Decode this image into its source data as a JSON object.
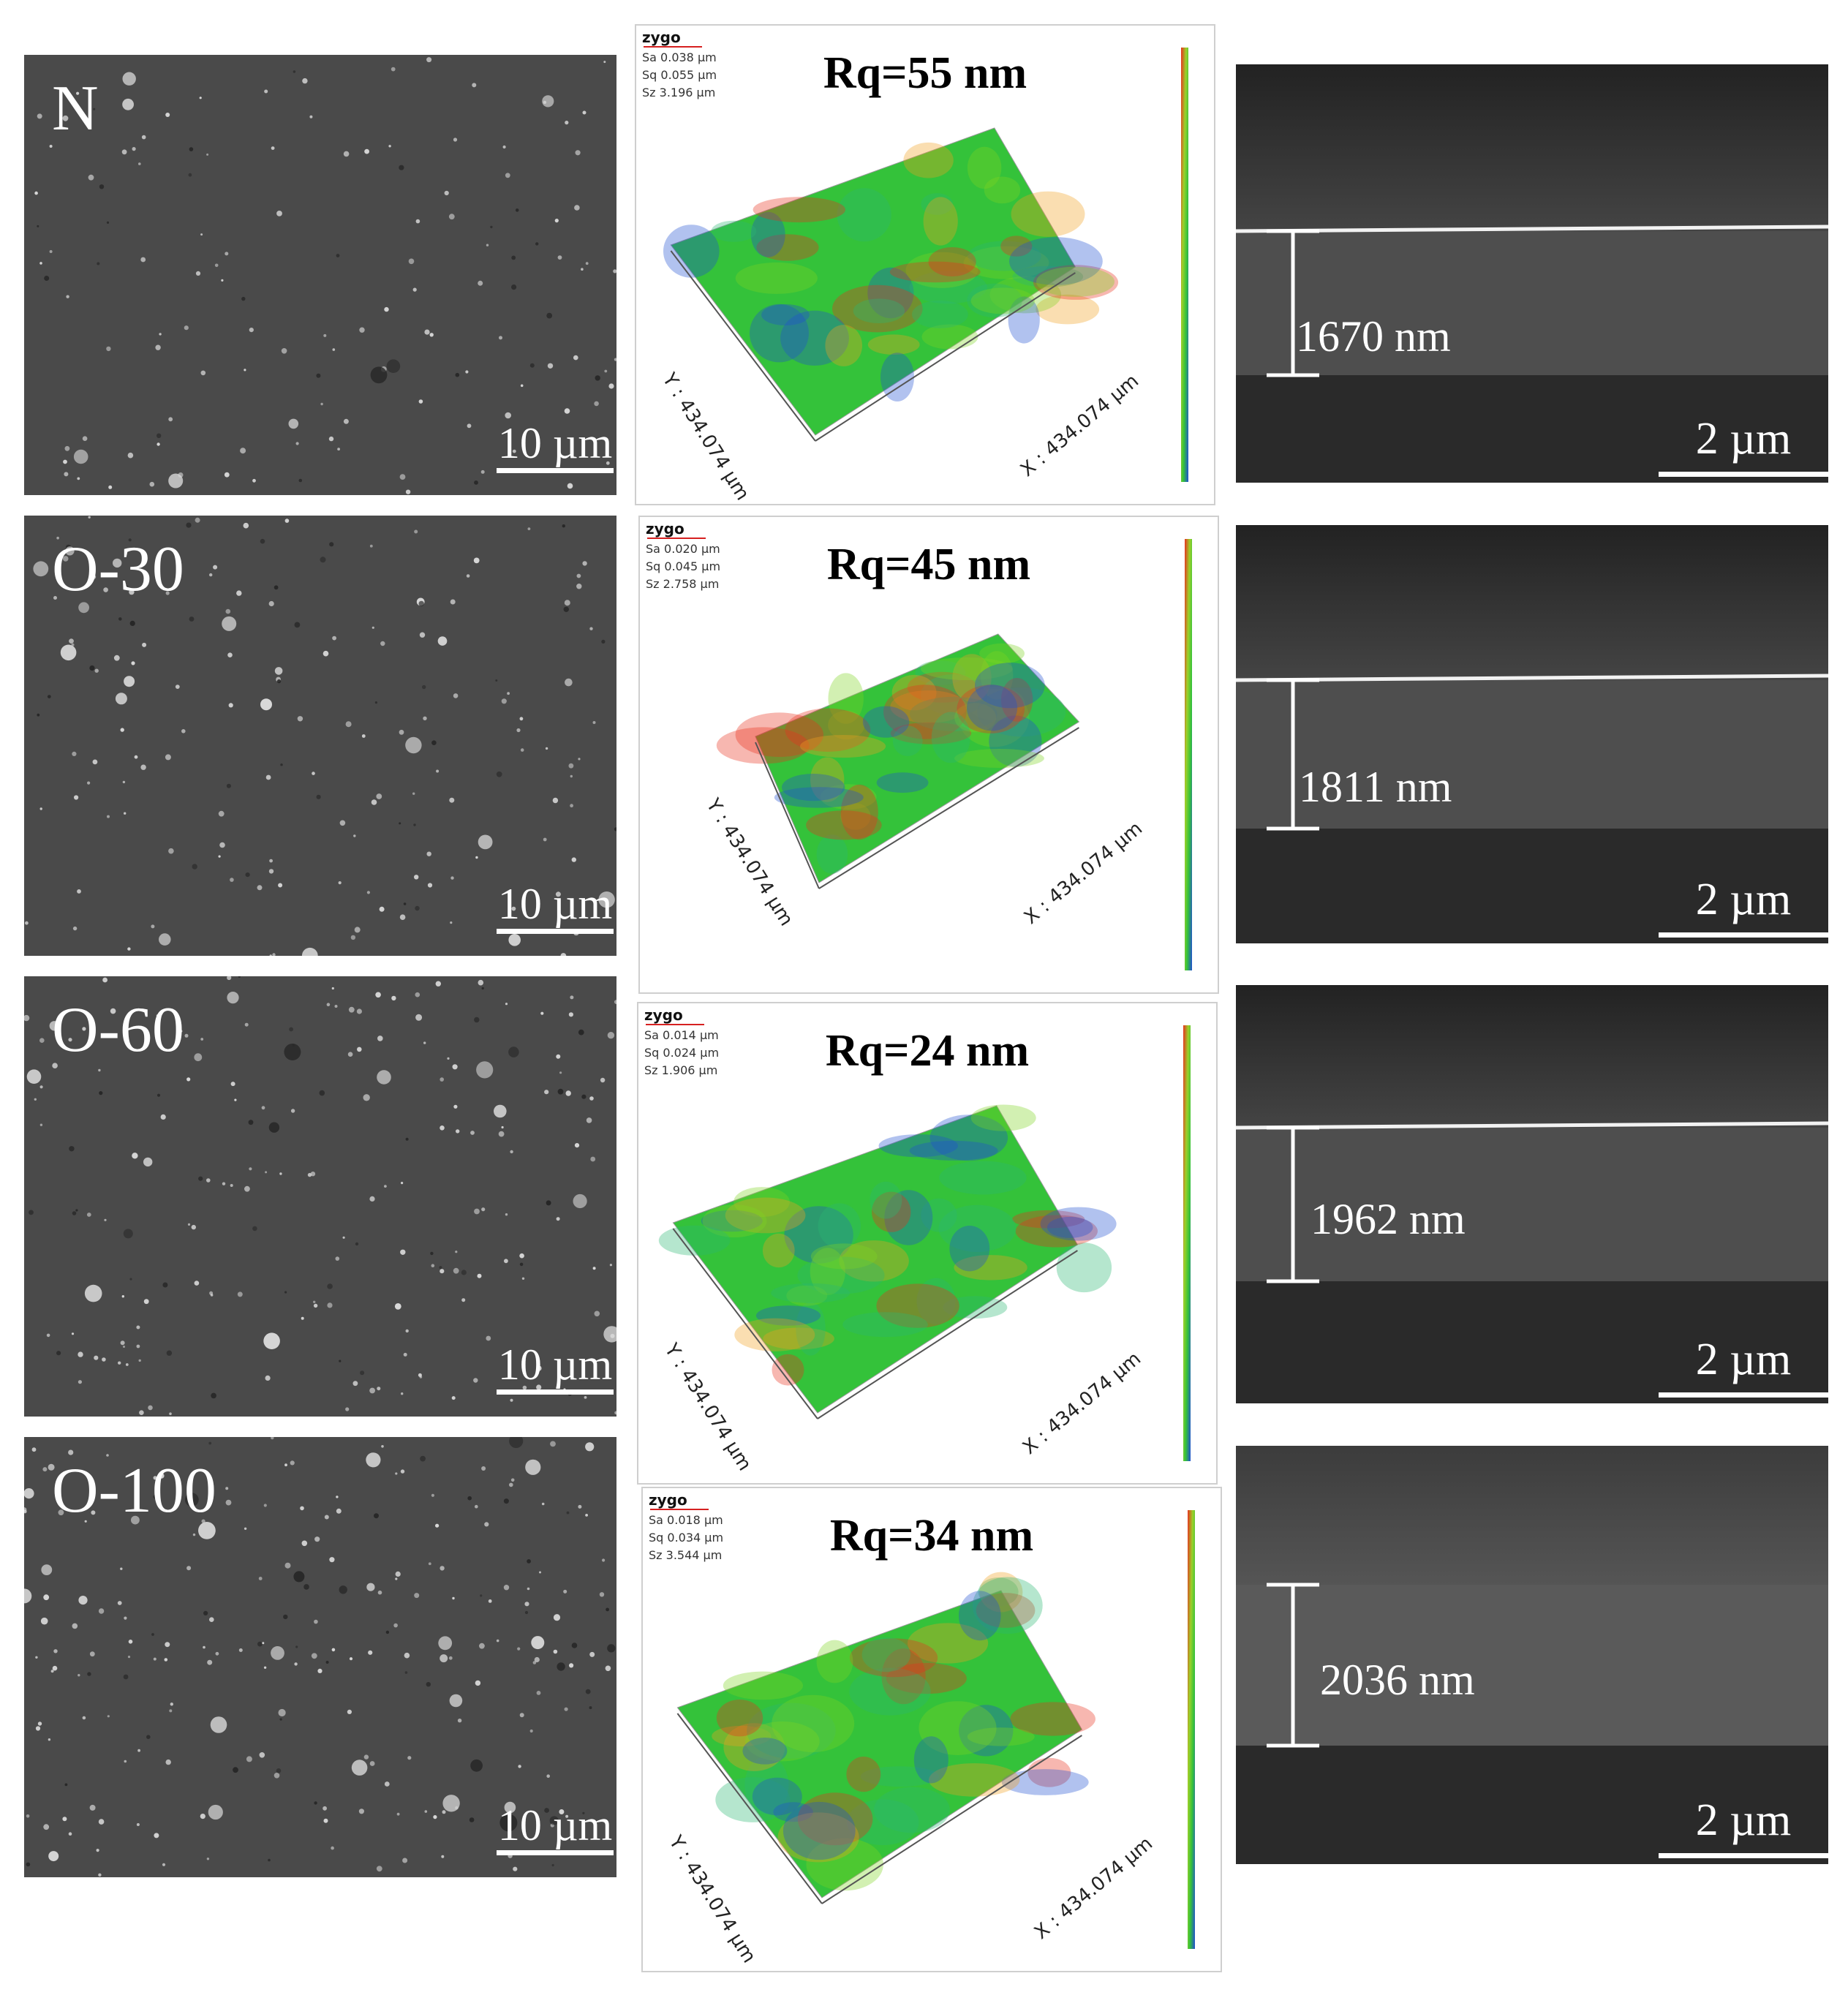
{
  "rows": [
    {
      "sample": "N",
      "sem_scale": "10 µm",
      "rq": "Rq=55 nm",
      "zygo": {
        "logo": "zygo",
        "sa": "Sa 0.038 µm",
        "sq": "Sq 0.055 µm",
        "sz": "Sz 3.196 µm"
      },
      "y_axis": "Y : 434.074 µm",
      "x_axis": "X : 434.074 µm",
      "thickness": "1670 nm",
      "xs_scale": "2 µm"
    },
    {
      "sample": "O-30",
      "sem_scale": "10 µm",
      "rq": "Rq=45 nm",
      "zygo": {
        "logo": "zygo",
        "sa": "Sa 0.020 µm",
        "sq": "Sq 0.045 µm",
        "sz": "Sz 2.758 µm"
      },
      "y_axis": "Y : 434.074 µm",
      "x_axis": "X : 434.074 µm",
      "thickness": "1811 nm",
      "xs_scale": "2 µm"
    },
    {
      "sample": "O-60",
      "sem_scale": "10 µm",
      "rq": "Rq=24 nm",
      "zygo": {
        "logo": "zygo",
        "sa": "Sa 0.014 µm",
        "sq": "Sq 0.024 µm",
        "sz": "Sz 1.906 µm"
      },
      "y_axis": "Y : 434.074 µm",
      "x_axis": "X : 434.074 µm",
      "thickness": "1962 nm",
      "xs_scale": "2 µm"
    },
    {
      "sample": "O-100",
      "sem_scale": "10 µm",
      "rq": "Rq=34 nm",
      "zygo": {
        "logo": "zygo",
        "sa": "Sa 0.018 µm",
        "sq": "Sq 0.034 µm",
        "sz": "Sz 3.544 µm"
      },
      "y_axis": "Y : 434.074 µm",
      "x_axis": "X : 434.074 µm",
      "thickness": "2036 nm",
      "xs_scale": "2 µm"
    }
  ],
  "colors": {
    "sem_bg": "#4a4a4a",
    "height_low": "#1f4fd1",
    "height_mid": "#34c23a",
    "height_high": "#e8321e"
  }
}
